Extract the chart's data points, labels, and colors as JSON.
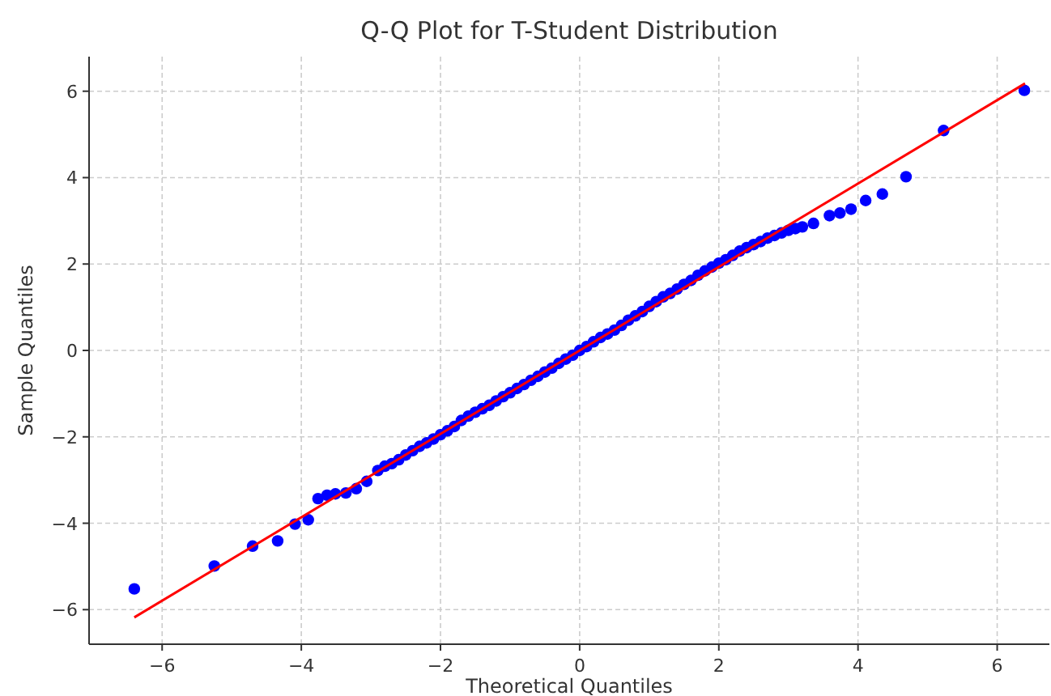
{
  "chart_data": {
    "type": "scatter",
    "title": "Q-Q Plot for T-Student Distribution",
    "xlabel": "Theoretical Quantiles",
    "ylabel": "Sample Quantiles",
    "xlim": [
      -7.05,
      6.75
    ],
    "ylim": [
      -6.8,
      6.8
    ],
    "xticks": [
      -6,
      -4,
      -2,
      0,
      2,
      4,
      6
    ],
    "yticks": [
      -6,
      -4,
      -2,
      0,
      2,
      4,
      6
    ],
    "grid": true,
    "series": [
      {
        "marker": "circle",
        "color": "#0000ff",
        "x": [
          -6.4,
          -5.25,
          -4.7,
          -4.34,
          -4.09,
          -3.9,
          -3.76,
          -3.63,
          -3.51,
          -3.36,
          -3.21,
          -3.06,
          -2.9,
          -2.8,
          -2.7,
          -2.6,
          -2.5,
          -2.4,
          -2.3,
          -2.2,
          -2.1,
          -2.0,
          -1.9,
          -1.8,
          -1.7,
          -1.6,
          -1.5,
          -1.4,
          -1.3,
          -1.2,
          -1.1,
          -1.0,
          -0.9,
          -0.8,
          -0.7,
          -0.6,
          -0.5,
          -0.4,
          -0.3,
          -0.2,
          -0.1,
          0,
          0.1,
          0.2,
          0.3,
          0.4,
          0.5,
          0.6,
          0.7,
          0.8,
          0.9,
          1.0,
          1.1,
          1.2,
          1.3,
          1.4,
          1.5,
          1.6,
          1.7,
          1.8,
          1.9,
          2.0,
          2.1,
          2.2,
          2.3,
          2.4,
          2.5,
          2.6,
          2.7,
          2.8,
          2.9,
          3.0,
          3.1,
          3.2,
          3.36,
          3.59,
          3.74,
          3.9,
          4.11,
          4.35,
          4.69,
          5.23,
          6.39
        ],
        "values": [
          -5.52,
          -4.99,
          -4.53,
          -4.41,
          -4.02,
          -3.92,
          -3.43,
          -3.35,
          -3.32,
          -3.3,
          -3.2,
          -3.03,
          -2.78,
          -2.68,
          -2.62,
          -2.53,
          -2.42,
          -2.32,
          -2.22,
          -2.14,
          -2.05,
          -1.95,
          -1.86,
          -1.76,
          -1.62,
          -1.52,
          -1.43,
          -1.35,
          -1.27,
          -1.17,
          -1.07,
          -0.98,
          -0.88,
          -0.79,
          -0.69,
          -0.6,
          -0.5,
          -0.41,
          -0.3,
          -0.2,
          -0.11,
          0,
          0.09,
          0.2,
          0.3,
          0.38,
          0.47,
          0.58,
          0.7,
          0.8,
          0.9,
          1.02,
          1.13,
          1.24,
          1.32,
          1.42,
          1.53,
          1.62,
          1.74,
          1.84,
          1.93,
          2.02,
          2.1,
          2.2,
          2.3,
          2.38,
          2.45,
          2.52,
          2.6,
          2.66,
          2.72,
          2.78,
          2.82,
          2.86,
          2.94,
          3.12,
          3.18,
          3.27,
          3.47,
          3.62,
          4.02,
          5.09,
          6.02
        ]
      },
      {
        "type": "line",
        "marker": "none",
        "color": "#ff0000",
        "x": [
          -6.4,
          6.4
        ],
        "values": [
          -6.18,
          6.18
        ]
      }
    ]
  }
}
